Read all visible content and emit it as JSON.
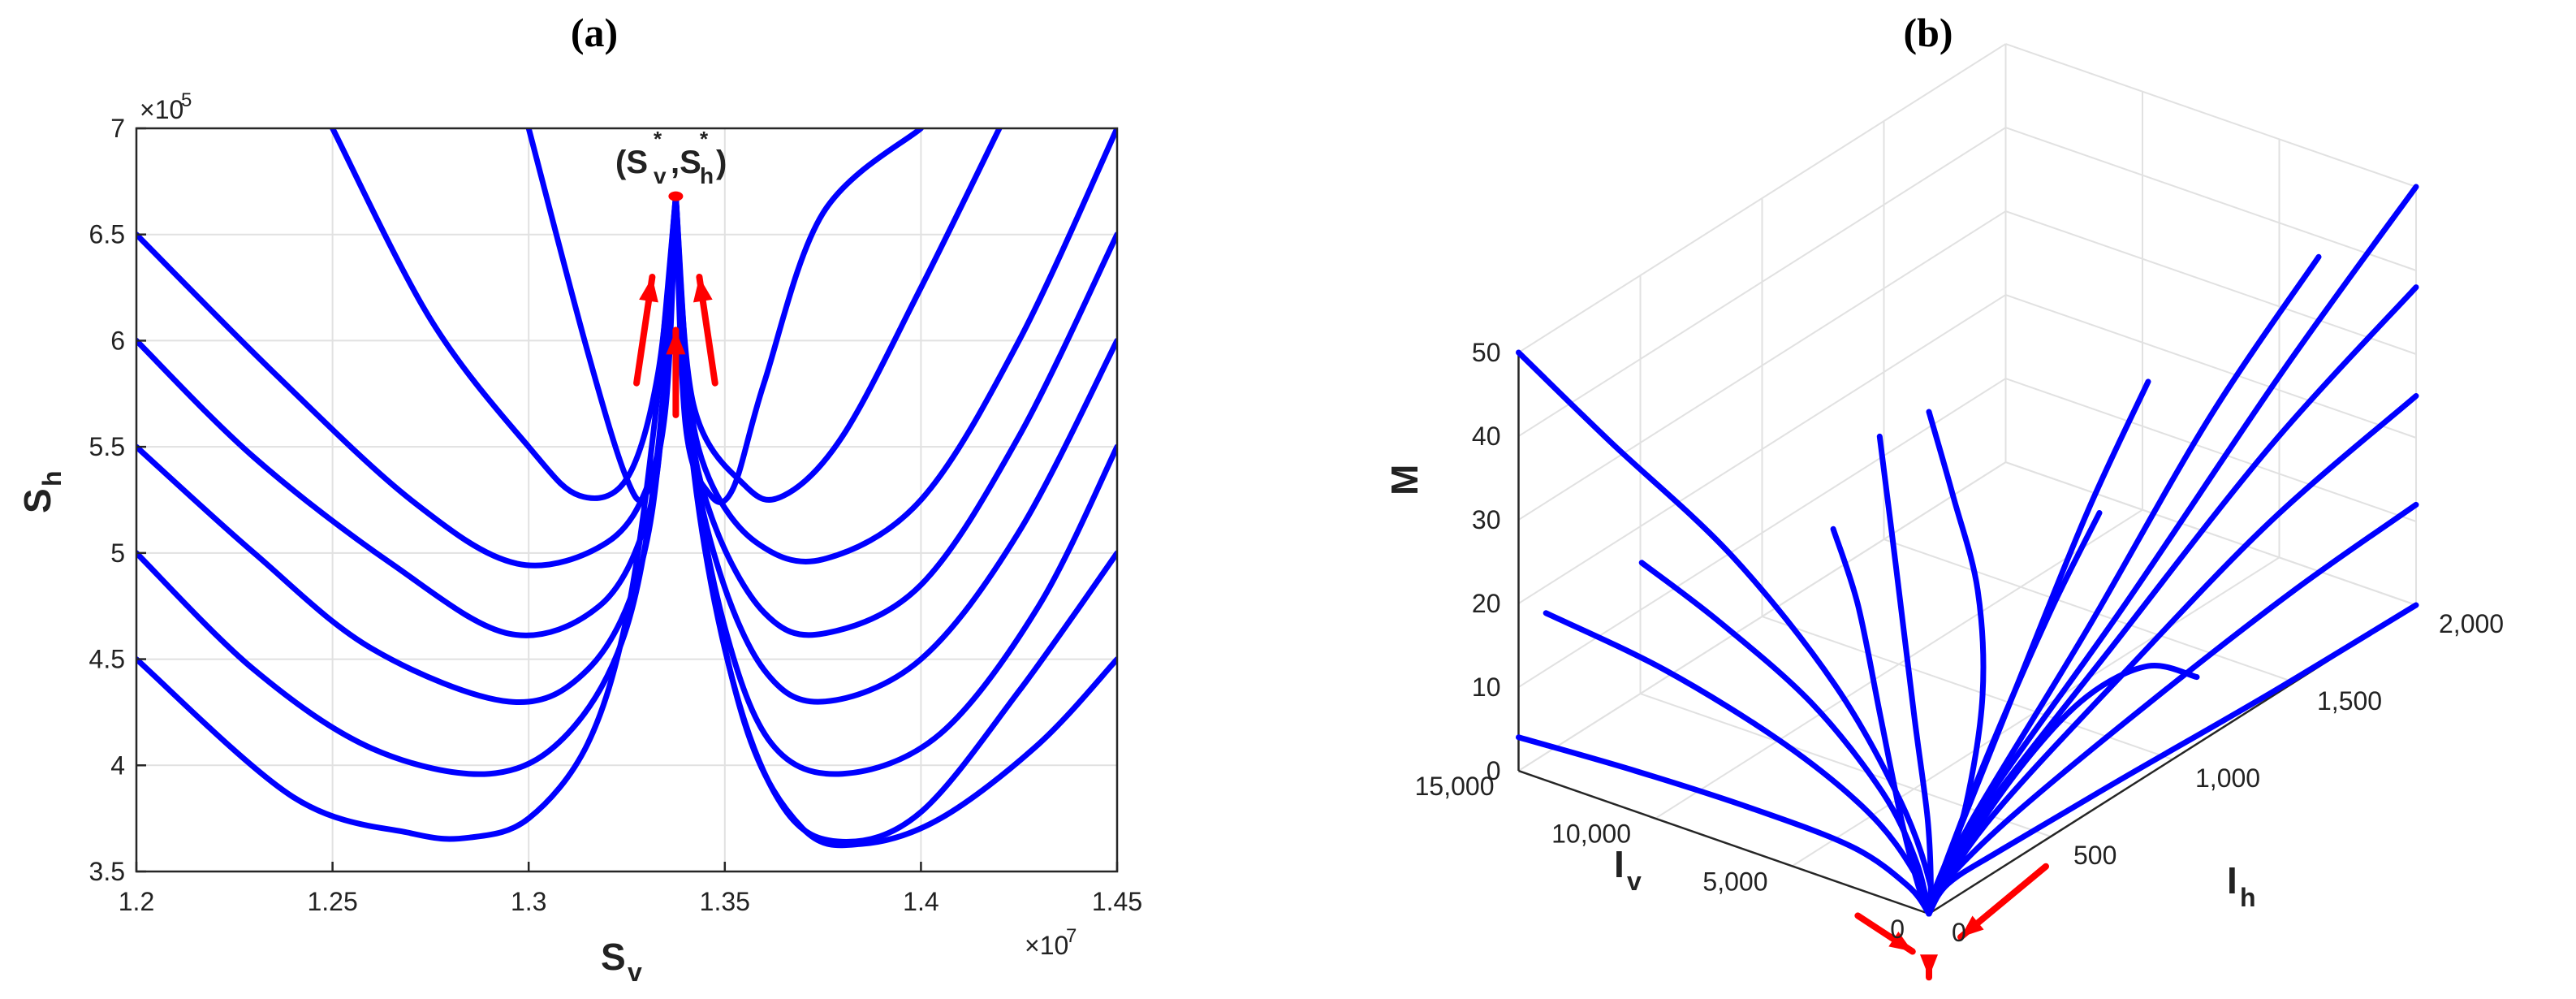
{
  "chart_data": [
    {
      "type": "line",
      "panel_label": "(a)",
      "xlabel": "S",
      "xlabel_sub": "v",
      "ylabel": "S",
      "ylabel_sub": "h",
      "xlim": [
        1.2,
        1.45
      ],
      "ylim": [
        3.5,
        7
      ],
      "x_exponent": "×10",
      "x_exponent_power": "7",
      "y_exponent": "×10",
      "y_exponent_power": "5",
      "xticks": [
        1.2,
        1.25,
        1.3,
        1.35,
        1.4,
        1.45
      ],
      "xtick_labels": [
        "1.2",
        "1.25",
        "1.3",
        "1.35",
        "1.4",
        "1.45"
      ],
      "yticks": [
        3.5,
        4,
        4.5,
        5,
        5.5,
        6,
        6.5,
        7
      ],
      "ytick_labels": [
        "3.5",
        "4",
        "4.5",
        "5",
        "5.5",
        "6",
        "6.5",
        "7"
      ],
      "grid": true,
      "line_color": "#0000ff",
      "arrow_color": "#ff0000",
      "equilibrium": {
        "x": 1.3375,
        "y": 6.68,
        "label": "(S",
        "label_sub_v": "v",
        "label_sub_h": "h",
        "label_sup": "*"
      },
      "series": [
        {
          "x": [
            1.2,
            1.24,
            1.27,
            1.285,
            1.3,
            1.315,
            1.325,
            1.332,
            1.3375
          ],
          "y": [
            4.5,
            3.85,
            3.68,
            3.66,
            3.75,
            4.1,
            4.7,
            5.6,
            6.68
          ]
        },
        {
          "x": [
            1.2,
            1.23,
            1.26,
            1.29,
            1.31,
            1.325,
            1.333,
            1.3375
          ],
          "y": [
            5.0,
            4.45,
            4.08,
            3.96,
            4.15,
            4.65,
            5.5,
            6.68
          ]
        },
        {
          "x": [
            1.2,
            1.23,
            1.26,
            1.295,
            1.315,
            1.328,
            1.334,
            1.3375
          ],
          "y": [
            5.5,
            5.0,
            4.55,
            4.3,
            4.45,
            4.9,
            5.6,
            6.68
          ]
        },
        {
          "x": [
            1.2,
            1.23,
            1.265,
            1.295,
            1.318,
            1.33,
            1.3345,
            1.3375
          ],
          "y": [
            6.0,
            5.45,
            4.95,
            4.62,
            4.75,
            5.15,
            5.7,
            6.68
          ]
        },
        {
          "x": [
            1.2,
            1.235,
            1.27,
            1.297,
            1.32,
            1.331,
            1.335,
            1.3375
          ],
          "y": [
            6.5,
            5.85,
            5.25,
            4.95,
            5.05,
            5.35,
            5.8,
            6.68
          ]
        },
        {
          "x": [
            1.25,
            1.275,
            1.3,
            1.313,
            1.325,
            1.333,
            1.3375
          ],
          "y": [
            7.0,
            6.1,
            5.5,
            5.27,
            5.35,
            5.85,
            6.68
          ]
        },
        {
          "x": [
            1.3,
            1.315,
            1.325,
            1.33,
            1.335,
            1.3375
          ],
          "y": [
            7.0,
            5.95,
            5.35,
            5.28,
            5.7,
            6.68
          ]
        },
        {
          "x": [
            1.3375,
            1.34,
            1.346,
            1.352,
            1.36,
            1.375,
            1.4
          ],
          "y": [
            6.68,
            5.6,
            5.28,
            5.3,
            5.8,
            6.6,
            7.0
          ]
        },
        {
          "x": [
            1.3375,
            1.342,
            1.355,
            1.365,
            1.38,
            1.4,
            1.42
          ],
          "y": [
            6.68,
            5.7,
            5.32,
            5.27,
            5.55,
            6.25,
            7.0
          ]
        },
        {
          "x": [
            1.3375,
            1.3405,
            1.346,
            1.358,
            1.375,
            1.4,
            1.425,
            1.45
          ],
          "y": [
            6.68,
            5.8,
            5.35,
            5.05,
            4.97,
            5.25,
            6.0,
            7.0
          ]
        },
        {
          "x": [
            1.3375,
            1.3405,
            1.347,
            1.36,
            1.375,
            1.4,
            1.425,
            1.45
          ],
          "y": [
            6.68,
            5.7,
            5.15,
            4.72,
            4.62,
            4.85,
            5.55,
            6.5
          ]
        },
        {
          "x": [
            1.3375,
            1.341,
            1.348,
            1.36,
            1.375,
            1.4,
            1.425,
            1.45
          ],
          "y": [
            6.68,
            5.6,
            4.95,
            4.45,
            4.3,
            4.5,
            5.1,
            6.0
          ]
        },
        {
          "x": [
            1.3375,
            1.3415,
            1.35,
            1.362,
            1.38,
            1.405,
            1.43,
            1.45
          ],
          "y": [
            6.68,
            5.5,
            4.65,
            4.1,
            3.96,
            4.15,
            4.75,
            5.5
          ]
        },
        {
          "x": [
            1.3375,
            1.342,
            1.352,
            1.365,
            1.38,
            1.4,
            1.425,
            1.45
          ],
          "y": [
            6.68,
            5.4,
            4.4,
            3.8,
            3.64,
            3.78,
            4.35,
            5.0
          ]
        },
        {
          "x": [
            1.3375,
            1.343,
            1.355,
            1.37,
            1.385,
            1.405,
            1.43,
            1.45
          ],
          "y": [
            6.68,
            5.3,
            4.2,
            3.7,
            3.63,
            3.75,
            4.1,
            4.5
          ]
        }
      ],
      "arrows": [
        {
          "from": [
            1.3275,
            5.8
          ],
          "to": [
            1.3315,
            6.3
          ]
        },
        {
          "from": [
            1.3375,
            5.65
          ],
          "to": [
            1.3375,
            6.05
          ]
        },
        {
          "from": [
            1.3475,
            5.8
          ],
          "to": [
            1.3435,
            6.3
          ]
        }
      ]
    },
    {
      "type": "line",
      "subtype": "3d-trajectories",
      "panel_label": "(b)",
      "zlabel": "M",
      "xlabel": "I",
      "xlabel_sub": "v",
      "ylabel": "I",
      "ylabel_sub": "h",
      "ticks_Iv": [
        "0",
        "5,000",
        "10,000",
        "15,000"
      ],
      "ticks_Ih": [
        "0",
        "500",
        "1,000",
        "1,500",
        "2,000"
      ],
      "ticks_M": [
        "0",
        "10",
        "20",
        "30",
        "40",
        "50"
      ],
      "Iv_range": [
        0,
        15000
      ],
      "Ih_range": [
        0,
        2000
      ],
      "M_range": [
        0,
        50
      ],
      "grid": true,
      "line_color": "#0000ff",
      "arrow_color": "#ff0000",
      "series": [
        [
          [
            15000,
            0,
            50
          ],
          [
            12000,
            40,
            42
          ],
          [
            8000,
            90,
            32
          ],
          [
            4500,
            120,
            20
          ],
          [
            2000,
            110,
            9
          ],
          [
            500,
            60,
            2
          ],
          [
            0,
            0,
            0
          ]
        ],
        [
          [
            10500,
            0,
            30
          ],
          [
            8000,
            40,
            25
          ],
          [
            5000,
            80,
            18
          ],
          [
            2500,
            90,
            10
          ],
          [
            1000,
            60,
            4
          ],
          [
            0,
            0,
            0
          ]
        ],
        [
          [
            14000,
            0,
            20
          ],
          [
            10000,
            40,
            17
          ],
          [
            6000,
            80,
            12
          ],
          [
            3000,
            90,
            7
          ],
          [
            1000,
            50,
            3
          ],
          [
            0,
            0,
            0
          ]
        ],
        [
          [
            15000,
            0,
            4
          ],
          [
            11000,
            30,
            4
          ],
          [
            7000,
            60,
            3.5
          ],
          [
            3500,
            80,
            2.5
          ],
          [
            1200,
            50,
            1
          ],
          [
            0,
            0,
            0
          ]
        ],
        [
          [
            1800,
            0,
            55
          ],
          [
            1400,
            20,
            40
          ],
          [
            900,
            40,
            22
          ],
          [
            500,
            50,
            10
          ],
          [
            200,
            30,
            3
          ],
          [
            0,
            0,
            0
          ]
        ],
        [
          [
            0,
            2000,
            0
          ],
          [
            0,
            1400,
            0.5
          ],
          [
            0,
            800,
            1.5
          ],
          [
            50,
            300,
            2
          ],
          [
            200,
            100,
            1.5
          ],
          [
            0,
            0,
            0
          ]
        ],
        [
          [
            0,
            2000,
            12
          ],
          [
            0,
            1500,
            11
          ],
          [
            0,
            900,
            8.5
          ],
          [
            100,
            350,
            5
          ],
          [
            150,
            80,
            2
          ],
          [
            0,
            0,
            0
          ]
        ],
        [
          [
            0,
            2000,
            25
          ],
          [
            0,
            1400,
            21
          ],
          [
            0,
            800,
            14
          ],
          [
            100,
            300,
            7
          ],
          [
            150,
            80,
            2
          ],
          [
            0,
            0,
            0
          ]
        ],
        [
          [
            0,
            2000,
            38
          ],
          [
            0,
            1400,
            30
          ],
          [
            0,
            750,
            18
          ],
          [
            100,
            250,
            8
          ],
          [
            150,
            60,
            2
          ],
          [
            0,
            0,
            0
          ]
        ],
        [
          [
            0,
            2000,
            50
          ],
          [
            0,
            1450,
            38
          ],
          [
            0,
            800,
            22
          ],
          [
            100,
            250,
            9
          ],
          [
            150,
            60,
            2
          ],
          [
            0,
            0,
            0
          ]
        ],
        [
          [
            0,
            1600,
            49
          ],
          [
            0,
            1150,
            38
          ],
          [
            0,
            650,
            22
          ],
          [
            100,
            200,
            8
          ],
          [
            100,
            50,
            2
          ],
          [
            0,
            0,
            0
          ]
        ],
        [
          [
            0,
            900,
            47
          ],
          [
            0,
            650,
            36
          ],
          [
            0,
            350,
            20
          ],
          [
            50,
            120,
            7
          ],
          [
            80,
            30,
            2
          ],
          [
            0,
            0,
            0
          ]
        ],
        [
          [
            0,
            700,
            35
          ],
          [
            0,
            500,
            27
          ],
          [
            0,
            250,
            15
          ],
          [
            50,
            80,
            5
          ],
          [
            50,
            20,
            1
          ],
          [
            0,
            0,
            0
          ]
        ],
        [
          [
            0,
            1100,
            8
          ],
          [
            0,
            900,
            13
          ],
          [
            0,
            650,
            14
          ],
          [
            0,
            400,
            11
          ],
          [
            60,
            150,
            5
          ],
          [
            50,
            30,
            1
          ],
          [
            0,
            0,
            0
          ]
        ],
        [
          [
            3500,
            0,
            42
          ],
          [
            2600,
            0,
            34
          ],
          [
            1800,
            0,
            22
          ],
          [
            1000,
            0,
            10
          ],
          [
            400,
            0,
            3
          ],
          [
            0,
            0,
            0
          ]
        ],
        [
          [
            0,
            0,
            60
          ],
          [
            0,
            100,
            48
          ],
          [
            0,
            200,
            35
          ],
          [
            0,
            220,
            22
          ],
          [
            0,
            150,
            10
          ],
          [
            0,
            50,
            3
          ],
          [
            0,
            0,
            0
          ]
        ]
      ],
      "arrows": [
        {
          "from": [
            2600,
            0,
            -3.2
          ],
          "to": [
            600,
            0,
            -5.2
          ]
        },
        {
          "from": [
            0,
            480,
            -3.2
          ],
          "to": [
            0,
            130,
            -5.2
          ]
        },
        {
          "from": [
            0,
            0,
            -6
          ],
          "to": [
            0,
            0,
            -7.6
          ]
        }
      ]
    }
  ]
}
